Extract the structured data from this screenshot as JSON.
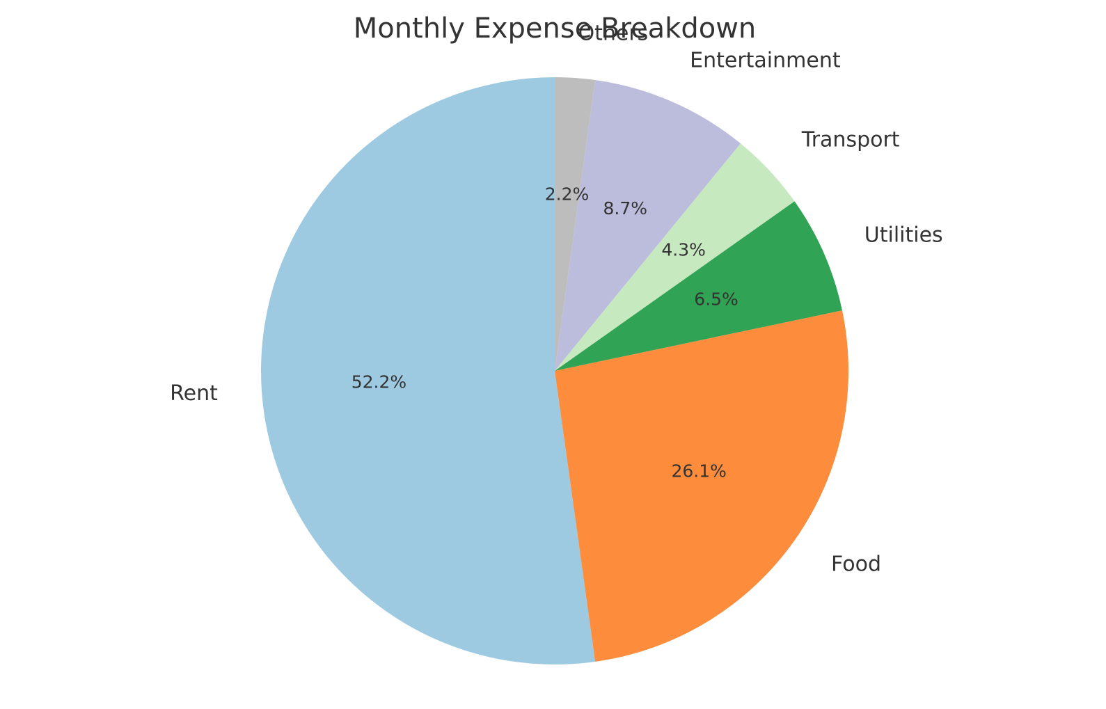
{
  "chart_data": {
    "type": "pie",
    "title": "Monthly Expense Breakdown",
    "slices": [
      {
        "label": "Rent",
        "value": 52.2,
        "pct_label": "52.2%",
        "color": "#9ecae1"
      },
      {
        "label": "Food",
        "value": 26.1,
        "pct_label": "26.1%",
        "color": "#fd8d3c"
      },
      {
        "label": "Utilities",
        "value": 6.5,
        "pct_label": "6.5%",
        "color": "#31a354"
      },
      {
        "label": "Transport",
        "value": 4.3,
        "pct_label": "4.3%",
        "color": "#c7e9c0"
      },
      {
        "label": "Entertainment",
        "value": 8.7,
        "pct_label": "8.7%",
        "color": "#bcbddc"
      },
      {
        "label": "Others",
        "value": 2.2,
        "pct_label": "2.2%",
        "color": "#bdbdbd"
      }
    ],
    "start_angle": "top",
    "direction": "counterclockwise",
    "legend": false
  }
}
